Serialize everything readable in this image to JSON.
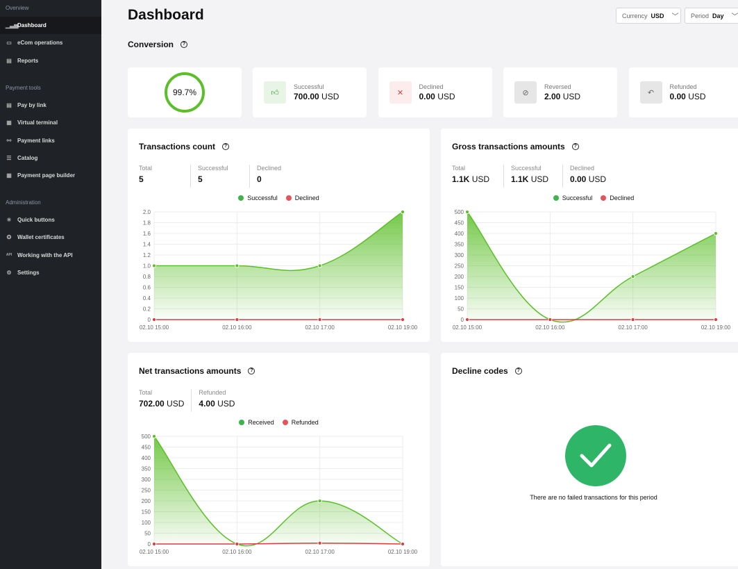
{
  "sidebar": {
    "sections": [
      {
        "title": "Overview",
        "items": [
          {
            "label": "Dashboard",
            "icon": "bar-chart-icon",
            "active": true
          },
          {
            "label": "eCom operations",
            "icon": "wallet-icon"
          },
          {
            "label": "Reports",
            "icon": "document-icon"
          }
        ]
      },
      {
        "title": "Payment tools",
        "items": [
          {
            "label": "Pay by link",
            "icon": "receipt-icon"
          },
          {
            "label": "Virtual terminal",
            "icon": "terminal-icon"
          },
          {
            "label": "Payment links",
            "icon": "link-icon"
          },
          {
            "label": "Catalog",
            "icon": "list-icon"
          },
          {
            "label": "Payment page builder",
            "icon": "grid-icon"
          }
        ]
      },
      {
        "title": "Administration",
        "items": [
          {
            "label": "Quick buttons",
            "icon": "sparkle-icon"
          },
          {
            "label": "Wallet certificates",
            "icon": "certificate-icon"
          },
          {
            "label": "Working with the API",
            "icon": "api-icon"
          },
          {
            "label": "Settings",
            "icon": "gear-icon"
          }
        ]
      }
    ]
  },
  "header": {
    "title": "Dashboard",
    "currency_label": "Currency",
    "currency_value": "USD",
    "period_label": "Period",
    "period_value": "Day"
  },
  "conversion": {
    "title": "Conversion",
    "rate": "99.7%",
    "stats": [
      {
        "label": "Successful",
        "amount": "700.00",
        "currency": "USD",
        "icon": "thumbs-up-icon",
        "color": "#2f9e3a",
        "bg": "#e8f5e6"
      },
      {
        "label": "Declined",
        "amount": "0.00",
        "currency": "USD",
        "icon": "x-icon",
        "color": "#e23b3b",
        "bg": "#fdecec"
      },
      {
        "label": "Reversed",
        "amount": "2.00",
        "currency": "USD",
        "icon": "cancel-circle-icon",
        "color": "#666",
        "bg": "#e6e6e6"
      },
      {
        "label": "Refunded",
        "amount": "0.00",
        "currency": "USD",
        "icon": "undo-icon",
        "color": "#666",
        "bg": "#e6e6e6"
      }
    ]
  },
  "colors": {
    "green": "#5cbf2a",
    "red": "#e23b3b",
    "legend_green": "#3cb54a",
    "legend_red": "#e8535b"
  },
  "chart_data": [
    {
      "type": "area",
      "title": "Transactions count",
      "kpis": [
        {
          "label": "Total",
          "value": "5"
        },
        {
          "label": "Successful",
          "value": "5"
        },
        {
          "label": "Declined",
          "value": "0"
        }
      ],
      "categories": [
        "02.10 15:00",
        "02.10 16:00",
        "02.10 17:00",
        "02.10 19:00"
      ],
      "ylim": [
        0,
        2
      ],
      "yticks": [
        "0",
        "0.2",
        "0.4",
        "0.6",
        "0.8",
        "1.0",
        "1.2",
        "1.4",
        "1.6",
        "1.8",
        "2.0"
      ],
      "grid": true,
      "legend": "top",
      "series": [
        {
          "name": "Successful",
          "values": [
            1,
            1,
            1,
            2
          ]
        },
        {
          "name": "Declined",
          "values": [
            0,
            0,
            0,
            0
          ]
        }
      ]
    },
    {
      "type": "area",
      "title": "Gross transactions amounts",
      "kpis": [
        {
          "label": "Total",
          "value": "1.1K",
          "unit": "USD"
        },
        {
          "label": "Successful",
          "value": "1.1K",
          "unit": "USD"
        },
        {
          "label": "Declined",
          "value": "0.00",
          "unit": "USD"
        }
      ],
      "categories": [
        "02.10 15:00",
        "02.10 16:00",
        "02.10 17:00",
        "02.10 19:00"
      ],
      "ylim": [
        0,
        500
      ],
      "yticks": [
        "0",
        "50",
        "100",
        "150",
        "200",
        "250",
        "300",
        "350",
        "400",
        "450",
        "500"
      ],
      "grid": true,
      "legend": "top",
      "series": [
        {
          "name": "Successful",
          "values": [
            500,
            0,
            200,
            400
          ]
        },
        {
          "name": "Declined",
          "values": [
            0,
            0,
            0,
            0
          ]
        }
      ]
    },
    {
      "type": "area",
      "title": "Net transactions amounts",
      "kpis": [
        {
          "label": "Total",
          "value": "702.00",
          "unit": "USD"
        },
        {
          "label": "Refunded",
          "value": "4.00",
          "unit": "USD"
        }
      ],
      "categories": [
        "02.10 15:00",
        "02.10 16:00",
        "02.10 17:00",
        "02.10 19:00"
      ],
      "ylim": [
        0,
        500
      ],
      "yticks": [
        "0",
        "50",
        "100",
        "150",
        "200",
        "250",
        "300",
        "350",
        "400",
        "450",
        "500"
      ],
      "grid": true,
      "legend": "top",
      "series": [
        {
          "name": "Received",
          "values": [
            500,
            0,
            200,
            0
          ]
        },
        {
          "name": "Refunded",
          "values": [
            0,
            0,
            4,
            0
          ]
        }
      ]
    }
  ],
  "decline_codes": {
    "title": "Decline codes",
    "message": "There are no failed transactions for this period",
    "icon": "check-circle-icon"
  }
}
